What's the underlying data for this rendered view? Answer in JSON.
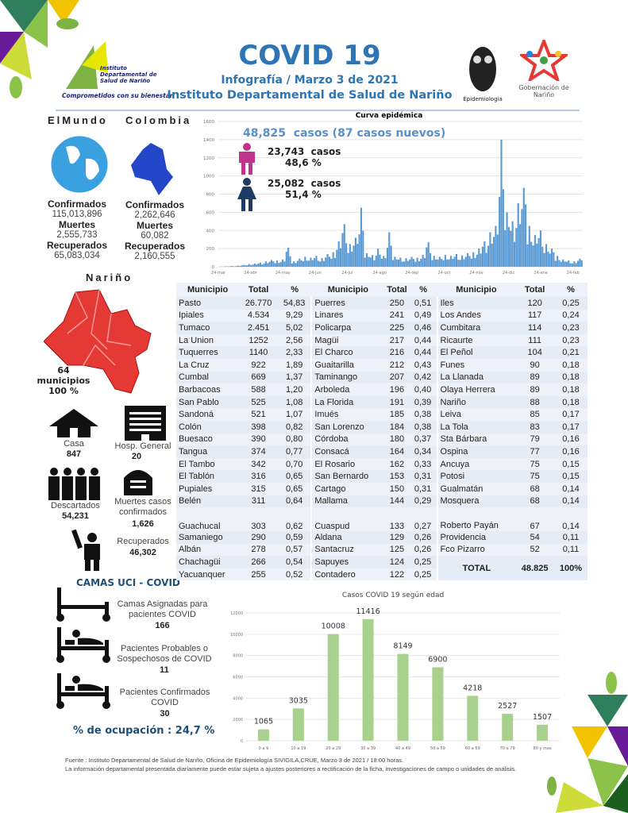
{
  "header": {
    "title": "COVID 19",
    "subtitle": "Infografía / Marzo 3 de 2021",
    "institution": "Instituto Departamental de Salud de Nariño",
    "logo_left_text": "Instituto Departamental de Salud de Nariño",
    "logo_left_slogan": "Comprometidos con su bienestar",
    "logo_epi": "Epidemiologia",
    "logo_gob": "Gobernación de Nariño"
  },
  "world": {
    "heading": "ElMundo",
    "confirmed_label": "Confirmados",
    "confirmed": "115,013,896",
    "deaths_label": "Muertes",
    "deaths": "2,555,733",
    "recovered_label": "Recuperados",
    "recovered": "65,083,034"
  },
  "colombia": {
    "heading": "Colombia",
    "confirmed_label": "Confirmados",
    "confirmed": "2,262,646",
    "deaths_label": "Muertes",
    "deaths": "60,082",
    "recovered_label": "Recuperados",
    "recovered": "2,160,555"
  },
  "narino": {
    "heading": "Nariño",
    "municipios": "64",
    "municipios_label": "municipios",
    "percent": "100 %"
  },
  "status": {
    "casa_label": "Casa",
    "casa": "847",
    "hosp_label": "Hosp. General",
    "hosp": "20",
    "descartados_label": "Descartados",
    "descartados": "54,231",
    "muertes_label": "Muertes casos confirmados",
    "muertes": "1,626",
    "recuperados_label": "Recuperados",
    "recuperados": "46,302"
  },
  "uci": {
    "heading": "CAMAS UCI - COVID",
    "asignadas_label": "Camas Asignadas para pacientes COVID",
    "asignadas": "166",
    "probables_label": "Pacientes Probables o Sospechosos de COVID",
    "probables": "11",
    "confirmados_label": "Pacientes Confirmados COVID",
    "confirmados": "30",
    "ocupacion": "% de ocupación : 24,7 %"
  },
  "summary": {
    "total_cases": "48,825",
    "cases_text": "casos (87 casos nuevos)",
    "men_cases": "23,743",
    "men_pct": "48,6 %",
    "women_cases": "25,082",
    "women_pct": "51,4 %",
    "casos_word": "casos"
  },
  "colors": {
    "accent": "#2e75b6",
    "men": "#c0338a",
    "women": "#1f3b63",
    "curve": "#5b9bd5",
    "age_bar": "#a9d18e",
    "map": "#e53935"
  },
  "chart_data": [
    {
      "type": "bar",
      "title": "Curva epidémica",
      "x_tick_labels": [
        "24-mar",
        "24-abr",
        "24-may",
        "24-jun",
        "24-jul",
        "24-ago",
        "24-sep",
        "24-oct",
        "24-nov",
        "24-dic",
        "24-ene",
        "24-feb"
      ],
      "y_ticks": [
        0,
        200,
        400,
        600,
        800,
        1000,
        1200,
        1400,
        1600
      ],
      "ylim": [
        0,
        1600
      ],
      "grid": true,
      "values_approx_every_5_days": [
        2,
        5,
        8,
        12,
        20,
        30,
        35,
        45,
        60,
        75,
        70,
        80,
        210,
        60,
        90,
        110,
        100,
        120,
        95,
        140,
        160,
        280,
        470,
        250,
        320,
        650,
        150,
        130,
        200,
        120,
        380,
        110,
        100,
        95,
        110,
        100,
        130,
        270,
        120,
        110,
        130,
        120,
        140,
        125,
        150,
        160,
        200,
        280,
        380,
        450,
        1400,
        600,
        500,
        700,
        870,
        450,
        350,
        400,
        250,
        200,
        120,
        80,
        70,
        60,
        90
      ]
    },
    {
      "type": "bar",
      "title": "Casos COVID 19  según edad",
      "categories": [
        "0 a 9",
        "10 a 19",
        "20 a 29",
        "30 a 39",
        "40 a 49",
        "50 a 59",
        "60 a 69",
        "70 a 79",
        "80 y mas"
      ],
      "values": [
        1065,
        3035,
        10008,
        11416,
        8149,
        6900,
        4218,
        2527,
        1507
      ],
      "y_ticks": [
        0,
        2000,
        4000,
        6000,
        8000,
        10000,
        12000
      ],
      "ylim": [
        0,
        12000
      ],
      "grid": true
    }
  ],
  "table": {
    "headers": [
      "Municipio",
      "Total",
      "%",
      "Municipio",
      "Total",
      "%",
      "Municipio",
      "Total",
      "%"
    ],
    "rows": [
      [
        "Pasto",
        "26.770",
        "54,83",
        "Puerres",
        "250",
        "0,51",
        "Iles",
        "120",
        "0,25"
      ],
      [
        "Ipiales",
        "4.534",
        "9,29",
        "Linares",
        "241",
        "0,49",
        "Los Andes",
        "117",
        "0,24"
      ],
      [
        "Tumaco",
        "2.451",
        "5,02",
        "Policarpa",
        "225",
        "0,46",
        "Cumbitara",
        "114",
        "0,23"
      ],
      [
        "La Union",
        "1252",
        "2,56",
        "Magüi",
        "217",
        "0,44",
        "Ricaurte",
        "111",
        "0,23"
      ],
      [
        "Tuquerres",
        "1140",
        "2,33",
        "El Charco",
        "216",
        "0,44",
        "El Peñol",
        "104",
        "0,21"
      ],
      [
        "La Cruz",
        "922",
        "1,89",
        "Guaitarilla",
        "212",
        "0,43",
        "Funes",
        "90",
        "0,18"
      ],
      [
        "Cumbal",
        "669",
        "1,37",
        "Taminango",
        "207",
        "0,42",
        "La Llanada",
        "89",
        "0,18"
      ],
      [
        "Barbacoas",
        "588",
        "1,20",
        "Arboleda",
        "196",
        "0,40",
        "Olaya Herrera",
        "89",
        "0,18"
      ],
      [
        "San Pablo",
        "525",
        "1,08",
        "La Florida",
        "191",
        "0,39",
        "Nariño",
        "88",
        "0,18"
      ],
      [
        "Sandoná",
        "521",
        "1,07",
        "Imués",
        "185",
        "0,38",
        "Leiva",
        "85",
        "0,17"
      ],
      [
        "Colón",
        "398",
        "0,82",
        "San Lorenzo",
        "184",
        "0,38",
        "La Tola",
        "83",
        "0,17"
      ],
      [
        "Buesaco",
        "390",
        "0,80",
        "Córdoba",
        "180",
        "0,37",
        "Sta Bárbara",
        "79",
        "0,16"
      ],
      [
        "Tangua",
        "374",
        "0,77",
        "Consacá",
        "164",
        "0,34",
        "Ospina",
        "77",
        "0,16"
      ],
      [
        "El Tambo",
        "342",
        "0,70",
        "El Rosario",
        "162",
        "0,33",
        "Ancuya",
        "75",
        "0,15"
      ],
      [
        "El Tablón",
        "316",
        "0,65",
        "San Bernardo",
        "153",
        "0,31",
        "Potosi",
        "75",
        "0,15"
      ],
      [
        "Pupiales",
        "315",
        "0,65",
        "Cartago",
        "150",
        "0,31",
        "Gualmatán",
        "68",
        "0,14"
      ],
      [
        "Belén",
        "311",
        "0,64",
        "Mallama",
        "144",
        "0,29",
        "Mosquera",
        "68",
        "0,14"
      ],
      [
        "Guachucal",
        "303",
        "0,62",
        "Cuaspud",
        "133",
        "0,27",
        "Roberto Payán",
        "67",
        "0,14"
      ],
      [
        "Samaniego",
        "290",
        "0,59",
        "Aldana",
        "129",
        "0,26",
        "Providencia",
        "54",
        "0,11"
      ],
      [
        "Albán",
        "278",
        "0,57",
        "Santacruz",
        "125",
        "0,26",
        "Fco Pizarro",
        "52",
        "0,11"
      ],
      [
        "Chachagüi",
        "266",
        "0,54",
        "Sapuyes",
        "124",
        "0,25"
      ],
      [
        "Yacuanquer",
        "255",
        "0,52",
        "Contadero",
        "122",
        "0,25"
      ]
    ],
    "total_label": "TOTAL",
    "total": "48.825",
    "total_pct": "100%"
  },
  "footer": {
    "source": "Fuente : Instituto Departamental de Salud de Nariño, Oficina de Epidemiología SIVIGILA,CRUE,  Marzo 3 de 2021 / 18:00  horas.",
    "note": "La información departamental presentada diariamente puede estar sujeta a ajustes posteriores a  rectificación de la ficha, investigaciones de campo o unidades de análisis."
  }
}
